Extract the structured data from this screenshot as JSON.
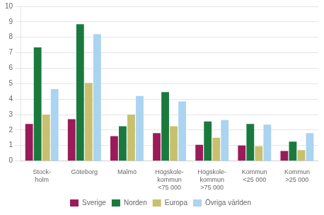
{
  "chart_data": {
    "type": "bar",
    "categories": [
      "Stock-\nholm",
      "Göteborg",
      "Malmö",
      "Högskole-\nkommun\n<75 000",
      "Högskole-\nkommun\n>75 000",
      "Kommun\n<25 000",
      "Kommun\n>25 000"
    ],
    "series": [
      {
        "name": "Sverige",
        "color": "#9b1b5a",
        "values": [
          2.4,
          2.7,
          1.6,
          1.8,
          1.05,
          1.0,
          0.65
        ]
      },
      {
        "name": "Norden",
        "color": "#1a7a3e",
        "values": [
          7.35,
          8.85,
          2.25,
          4.45,
          2.55,
          2.4,
          1.25
        ]
      },
      {
        "name": "Europa",
        "color": "#c8c06e",
        "values": [
          3.0,
          5.05,
          3.0,
          2.25,
          1.5,
          0.95,
          0.7
        ]
      },
      {
        "name": "Övriga världen",
        "color": "#aad4f0",
        "values": [
          4.65,
          8.2,
          4.2,
          3.85,
          2.65,
          2.35,
          1.8
        ]
      }
    ],
    "ylim": [
      0,
      10
    ],
    "yticks": [
      0,
      1,
      2,
      3,
      4,
      5,
      6,
      7,
      8,
      9,
      10
    ],
    "grid": true,
    "legend": "bottom"
  }
}
